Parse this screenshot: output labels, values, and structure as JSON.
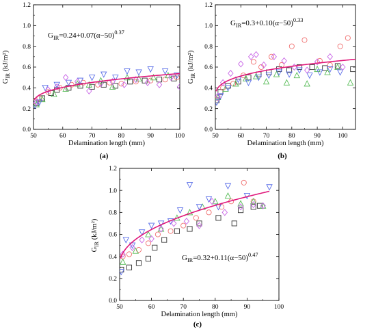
{
  "colors": {
    "fit": "#e0177a",
    "black": "#333333",
    "red": "#f07070",
    "green": "#55bb55",
    "blue": "#5a6ee8",
    "magenta": "#c864e6",
    "orange": "#f0a050",
    "cyan": "#60b8e6"
  },
  "chart_data": [
    {
      "id": "a",
      "type": "scatter",
      "panel_label": "(a)",
      "xlabel": "Delamination length (mm)",
      "ylabel": "G_IR (kJ/m²)",
      "equation": "G_IR=0.24+0.07(α−50)^0.37",
      "xlim": [
        50,
        100
      ],
      "ylim": [
        0.0,
        1.2
      ],
      "xticks": [
        50,
        60,
        70,
        80,
        90,
        100
      ],
      "yticks": [
        0.0,
        0.2,
        0.4,
        0.6,
        0.8,
        1.0,
        1.2
      ],
      "tick_labels_x": [
        "50",
        "60",
        "70",
        "80",
        "90",
        "100"
      ],
      "tick_labels_y": [
        "0.0",
        "0.2",
        "0.4",
        "0.6",
        "0.8",
        "1.0",
        "1.2"
      ],
      "fit": {
        "a": 0.24,
        "b": 0.07,
        "c": 0.37,
        "x0": 50,
        "x_start": 50.3,
        "x_end": 100
      },
      "series": [
        {
          "marker": "square",
          "color": "black",
          "points": [
            [
              51,
              0.25
            ],
            [
              53,
              0.3
            ],
            [
              56,
              0.35
            ],
            [
              58,
              0.38
            ],
            [
              62,
              0.4
            ],
            [
              66,
              0.42
            ],
            [
              70,
              0.41
            ],
            [
              74,
              0.43
            ],
            [
              78,
              0.42
            ],
            [
              83,
              0.46
            ],
            [
              88,
              0.47
            ],
            [
              93,
              0.48
            ],
            [
              98,
              0.49
            ]
          ]
        },
        {
          "marker": "circle",
          "color": "red",
          "points": [
            [
              50.5,
              0.27
            ],
            [
              52,
              0.3
            ],
            [
              55,
              0.36
            ],
            [
              59,
              0.4
            ],
            [
              63,
              0.43
            ],
            [
              67,
              0.45
            ],
            [
              72,
              0.43
            ],
            [
              76,
              0.45
            ],
            [
              80,
              0.44
            ],
            [
              85,
              0.46
            ],
            [
              90,
              0.47
            ],
            [
              95,
              0.48
            ],
            [
              99,
              0.5
            ]
          ]
        },
        {
          "marker": "triangle-up",
          "color": "green",
          "points": [
            [
              51,
              0.24
            ],
            [
              53,
              0.29
            ],
            [
              57,
              0.34
            ],
            [
              61,
              0.39
            ],
            [
              65,
              0.44
            ],
            [
              69,
              0.43
            ],
            [
              73,
              0.47
            ],
            [
              77,
              0.41
            ],
            [
              82,
              0.5
            ],
            [
              86,
              0.49
            ],
            [
              91,
              0.5
            ],
            [
              96,
              0.52
            ]
          ]
        },
        {
          "marker": "triangle-down",
          "color": "blue",
          "points": [
            [
              50.5,
              0.23
            ],
            [
              52,
              0.26
            ],
            [
              54,
              0.4
            ],
            [
              58,
              0.43
            ],
            [
              62,
              0.45
            ],
            [
              66,
              0.47
            ],
            [
              70,
              0.5
            ],
            [
              74,
              0.53
            ],
            [
              78,
              0.5
            ],
            [
              82,
              0.56
            ],
            [
              86,
              0.55
            ],
            [
              90,
              0.58
            ],
            [
              95,
              0.56
            ],
            [
              99,
              0.52
            ]
          ]
        },
        {
          "marker": "diamond",
          "color": "magenta",
          "points": [
            [
              51,
              0.26
            ],
            [
              55,
              0.38
            ],
            [
              58,
              0.41
            ],
            [
              61,
              0.5
            ],
            [
              65,
              0.46
            ],
            [
              69,
              0.37
            ],
            [
              73,
              0.44
            ],
            [
              77,
              0.46
            ],
            [
              81,
              0.43
            ],
            [
              85,
              0.48
            ],
            [
              89,
              0.45
            ],
            [
              93,
              0.43
            ],
            [
              97,
              0.5
            ],
            [
              100,
              0.41
            ]
          ]
        }
      ]
    },
    {
      "id": "b",
      "type": "scatter",
      "panel_label": "(b)",
      "xlabel": "Delamination length (mm)",
      "ylabel": "G_IR (kJ/m²)",
      "equation": "G_IR=0.3+0.10(α−50)^0.33",
      "xlim": [
        50,
        105
      ],
      "ylim": [
        0.0,
        1.2
      ],
      "xticks": [
        50,
        60,
        70,
        80,
        90,
        100
      ],
      "yticks": [
        0.0,
        0.2,
        0.4,
        0.6,
        0.8,
        1.0,
        1.2
      ],
      "tick_labels_x": [
        "50",
        "60",
        "70",
        "80",
        "90",
        "100"
      ],
      "tick_labels_y": [
        "0.0",
        "0.2",
        "0.4",
        "0.6",
        "0.8",
        "1.0",
        "1.2"
      ],
      "fit": {
        "a": 0.3,
        "b": 0.1,
        "c": 0.33,
        "x0": 50,
        "x_start": 50.3,
        "x_end": 105
      },
      "series": [
        {
          "marker": "square",
          "color": "black",
          "points": [
            [
              50.5,
              0.28
            ],
            [
              52,
              0.36
            ],
            [
              55,
              0.42
            ],
            [
              59,
              0.46
            ],
            [
              63,
              0.5
            ],
            [
              67,
              0.53
            ],
            [
              71,
              0.55
            ],
            [
              75,
              0.58
            ],
            [
              79,
              0.57
            ],
            [
              83,
              0.6
            ],
            [
              88,
              0.6
            ],
            [
              93,
              0.59
            ],
            [
              98,
              0.61
            ],
            [
              104,
              0.58
            ]
          ]
        },
        {
          "marker": "circle",
          "color": "red",
          "points": [
            [
              51,
              0.3
            ],
            [
              53,
              0.4
            ],
            [
              57,
              0.44
            ],
            [
              61,
              0.52
            ],
            [
              65,
              0.65
            ],
            [
              68,
              0.6
            ],
            [
              72,
              0.7
            ],
            [
              76,
              0.62
            ],
            [
              80,
              0.8
            ],
            [
              85,
              0.86
            ],
            [
              91,
              0.66
            ],
            [
              95,
              0.62
            ],
            [
              99,
              0.8
            ],
            [
              102,
              0.88
            ]
          ]
        },
        {
          "marker": "triangle-up",
          "color": "green",
          "points": [
            [
              51,
              0.31
            ],
            [
              54,
              0.39
            ],
            [
              58,
              0.44
            ],
            [
              62,
              0.49
            ],
            [
              66,
              0.51
            ],
            [
              70,
              0.46
            ],
            [
              74,
              0.53
            ],
            [
              78,
              0.45
            ],
            [
              82,
              0.52
            ],
            [
              86,
              0.44
            ],
            [
              90,
              0.58
            ],
            [
              94,
              0.55
            ],
            [
              98,
              0.6
            ],
            [
              103,
              0.45
            ]
          ]
        },
        {
          "marker": "triangle-down",
          "color": "blue",
          "points": [
            [
              50.5,
              0.26
            ],
            [
              52,
              0.32
            ],
            [
              55,
              0.4
            ],
            [
              59,
              0.48
            ],
            [
              63,
              0.45
            ],
            [
              67,
              0.5
            ],
            [
              71,
              0.52
            ],
            [
              75,
              0.55
            ],
            [
              79,
              0.53
            ],
            [
              83,
              0.57
            ],
            [
              87,
              0.52
            ],
            [
              91,
              0.55
            ],
            [
              95,
              0.58
            ],
            [
              99,
              0.55
            ]
          ]
        },
        {
          "marker": "diamond",
          "color": "magenta",
          "points": [
            [
              51,
              0.32
            ],
            [
              53,
              0.45
            ],
            [
              56,
              0.54
            ],
            [
              60,
              0.63
            ],
            [
              64,
              0.7
            ],
            [
              66,
              0.72
            ],
            [
              69,
              0.62
            ],
            [
              73,
              0.7
            ],
            [
              77,
              0.66
            ],
            [
              81,
              0.6
            ],
            [
              86,
              0.57
            ],
            [
              90,
              0.65
            ],
            [
              95,
              0.7
            ],
            [
              100,
              0.6
            ]
          ]
        }
      ]
    },
    {
      "id": "c",
      "type": "scatter",
      "panel_label": "(c)",
      "xlabel": "Delamination length (mm)",
      "ylabel": "G_IR (kJ/m²)",
      "equation": "G_IR=0.32+0.11(α−50)^0.47",
      "xlim": [
        50,
        100
      ],
      "ylim": [
        0.0,
        1.2
      ],
      "xticks": [
        50,
        60,
        70,
        80,
        90,
        100
      ],
      "yticks": [
        0.0,
        0.2,
        0.4,
        0.6,
        0.8,
        1.0,
        1.2
      ],
      "tick_labels_x": [
        "50",
        "60",
        "70",
        "80",
        "90",
        "100"
      ],
      "tick_labels_y": [
        "0.0",
        "0.2",
        "0.4",
        "0.6",
        "0.8",
        "1.0",
        "1.2"
      ],
      "fit": {
        "a": 0.32,
        "b": 0.11,
        "c": 0.47,
        "x0": 50,
        "x_start": 50.3,
        "x_end": 97
      },
      "series": [
        {
          "marker": "square",
          "color": "black",
          "points": [
            [
              50.5,
              0.28
            ],
            [
              53,
              0.3
            ],
            [
              56,
              0.34
            ],
            [
              59,
              0.38
            ],
            [
              61,
              0.48
            ],
            [
              64,
              0.55
            ],
            [
              68,
              0.63
            ],
            [
              72,
              0.65
            ],
            [
              75,
              0.7
            ],
            [
              81,
              0.75
            ],
            [
              86,
              0.7
            ],
            [
              88,
              0.82
            ],
            [
              92,
              0.85
            ],
            [
              94,
              0.86
            ]
          ]
        },
        {
          "marker": "circle",
          "color": "red",
          "points": [
            [
              51,
              0.4
            ],
            [
              53,
              0.42
            ],
            [
              56,
              0.46
            ],
            [
              59,
              0.52
            ],
            [
              62,
              0.6
            ],
            [
              66,
              0.63
            ],
            [
              70,
              0.68
            ],
            [
              74,
              0.75
            ],
            [
              78,
              0.8
            ],
            [
              82,
              0.85
            ],
            [
              85,
              0.9
            ],
            [
              89,
              1.07
            ],
            [
              92,
              0.9
            ]
          ]
        },
        {
          "marker": "triangle-up",
          "color": "green",
          "points": [
            [
              51,
              0.35
            ],
            [
              55,
              0.45
            ],
            [
              59,
              0.6
            ],
            [
              63,
              0.65
            ],
            [
              68,
              0.75
            ],
            [
              72,
              0.8
            ],
            [
              76,
              0.85
            ],
            [
              80,
              0.9
            ],
            [
              84,
              0.95
            ],
            [
              88,
              0.88
            ],
            [
              92,
              0.9
            ],
            [
              95,
              0.86
            ]
          ]
        },
        {
          "marker": "triangle-down",
          "color": "blue",
          "points": [
            [
              50.5,
              0.26
            ],
            [
              52,
              0.55
            ],
            [
              54,
              0.5
            ],
            [
              57,
              0.62
            ],
            [
              60,
              0.68
            ],
            [
              63,
              0.7
            ],
            [
              66,
              0.72
            ],
            [
              69,
              0.82
            ],
            [
              72,
              1.05
            ],
            [
              75,
              0.85
            ],
            [
              78,
              0.92
            ],
            [
              81,
              0.85
            ],
            [
              84,
              1.04
            ],
            [
              90,
              0.95
            ],
            [
              97,
              1.03
            ]
          ]
        },
        {
          "marker": "diamond",
          "color": "magenta",
          "points": [
            [
              51,
              0.42
            ],
            [
              54,
              0.48
            ],
            [
              57,
              0.55
            ],
            [
              60,
              0.56
            ],
            [
              63,
              0.65
            ],
            [
              67,
              0.7
            ],
            [
              71,
              0.72
            ],
            [
              75,
              0.68
            ],
            [
              79,
              0.9
            ],
            [
              83,
              0.8
            ],
            [
              88,
              0.85
            ],
            [
              92,
              0.87
            ],
            [
              95,
              0.86
            ]
          ]
        }
      ]
    }
  ]
}
